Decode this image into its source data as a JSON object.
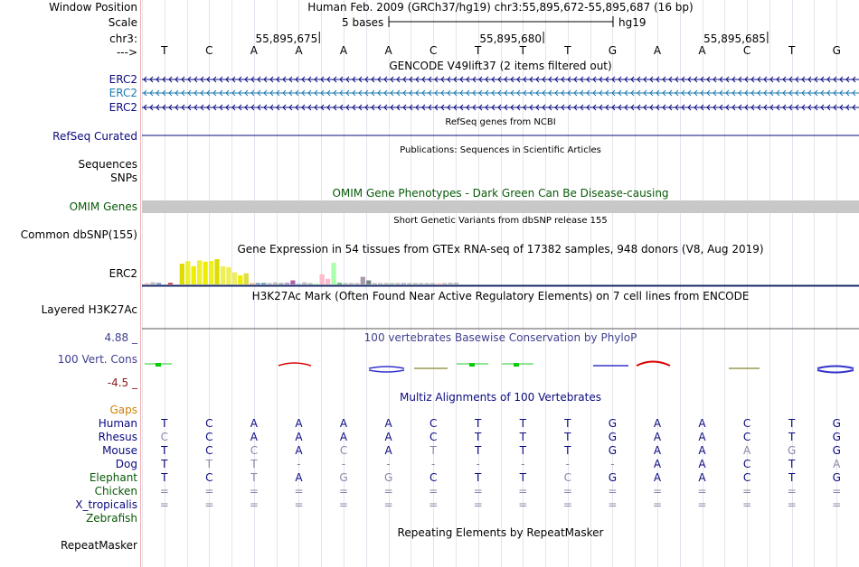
{
  "header": {
    "window_position_label": "Window Position",
    "window_position_value": "Human Feb. 2009 (GRCh37/hg19)   chr3:55,895,672-55,895,687 (16 bp)",
    "scale_label": "Scale",
    "scale_text": "5 bases",
    "scale_db": "hg19",
    "chr_label": "chr3:",
    "ticks": [
      {
        "text": "55,895,675",
        "pos": 4
      },
      {
        "text": "55,895,680",
        "pos": 9
      },
      {
        "text": "55,895,685",
        "pos": 14
      }
    ],
    "arrow_label": "--->",
    "bases": [
      "T",
      "C",
      "A",
      "A",
      "A",
      "A",
      "C",
      "T",
      "T",
      "T",
      "G",
      "A",
      "A",
      "C",
      "T",
      "G"
    ]
  },
  "tracks": {
    "gencode": {
      "title": "GENCODE V49lift37 (2 items filtered out)",
      "items": [
        {
          "label": "ERC2",
          "color": "#0a0a80"
        },
        {
          "label": "ERC2",
          "color": "#1b7ab0"
        },
        {
          "label": "ERC2",
          "color": "#0a0a80"
        }
      ]
    },
    "refseq": {
      "title": "RefSeq genes from NCBI",
      "label": "RefSeq Curated",
      "color": "#0a0a80"
    },
    "publications": {
      "title": "Publications: Sequences in Scientific Articles",
      "labels": [
        "Sequences",
        "SNPs"
      ]
    },
    "omim": {
      "title": "OMIM Gene Phenotypes - Dark Green Can Be Disease-causing",
      "label": "OMIM Genes",
      "color": "#075a07"
    },
    "dbsnp": {
      "title": "Short Genetic Variants from dbSNP release 155",
      "label": "Common dbSNP(155)"
    },
    "gtex": {
      "title": "Gene Expression in 54 tissues from GTEx RNA-seq of 17382 samples, 948 donors (V8, Aug 2019)",
      "label": "ERC2",
      "levels": [
        0.05,
        0.08,
        0.04,
        0,
        0.06,
        0,
        0.82,
        0.92,
        0.72,
        0.95,
        0.9,
        0.93,
        1.0,
        0.72,
        0.68,
        0.48,
        0.36,
        0.44,
        0.06,
        0.05,
        0.06,
        0.04,
        0.08,
        0.05,
        0.07,
        0.16,
        0.04,
        0.08,
        0.04,
        0.05,
        0.4,
        0.22,
        0.85,
        0.06,
        0.04,
        0.05,
        0.03,
        0.3,
        0.16,
        0.04,
        0.05,
        0.04,
        0.05,
        0.03,
        0.04,
        0.05,
        0.03,
        0.04,
        0.05,
        0.03,
        0.04,
        0.05,
        0.06,
        0.07
      ],
      "colors": [
        "#fbb",
        "#bbb",
        "#68b",
        "#eee",
        "#c33",
        "#ccc",
        "#dd0",
        "#ee3",
        "#ee0",
        "#ee3",
        "#ee0",
        "#ee2",
        "#dd0",
        "#ee5",
        "#ee5",
        "#ee6",
        "#ee0",
        "#dd4",
        "#fb8",
        "#69b",
        "#69b",
        "#bbb",
        "#bbb",
        "#9a9",
        "#b9d",
        "#a6a",
        "#bdf",
        "#bbb",
        "#bbb",
        "#bfb",
        "#fbc",
        "#fbc",
        "#afa",
        "#4b4",
        "#bbb",
        "#bbb",
        "#bbb",
        "#a9a",
        "#788",
        "#bbb",
        "#bbb",
        "#bbb",
        "#aca",
        "#bbb",
        "#aac",
        "#bbb",
        "#bbb",
        "#bbb",
        "#bbb",
        "#bbb",
        "#fcb",
        "#bbb",
        "#bbb",
        "#bbb"
      ]
    },
    "h3k27ac": {
      "title": "H3K27Ac Mark (Often Found Near Active Regulatory Elements) on 7 cell lines from ENCODE",
      "label": "Layered H3K27Ac"
    },
    "phylop": {
      "title": "100 vertebrates Basewise Conservation by PhyloP",
      "label": "100 Vert. Cons",
      "max_label": "4.88 _",
      "min_label": "-4.5 _",
      "color": "#404090"
    },
    "multiz": {
      "title": "Multiz Alignments of 100 Vertebrates",
      "gaps_label": "Gaps",
      "gaps_color": "#d08000",
      "species": [
        {
          "label": "Human",
          "bases": [
            "T",
            "C",
            "A",
            "A",
            "A",
            "A",
            "C",
            "T",
            "T",
            "T",
            "G",
            "A",
            "A",
            "C",
            "T",
            "G"
          ]
        },
        {
          "label": "Rhesus",
          "bases": [
            "C",
            "C",
            "A",
            "A",
            "A",
            "A",
            "C",
            "T",
            "T",
            "T",
            "G",
            "A",
            "A",
            "C",
            "T",
            "G"
          ]
        },
        {
          "label": "Mouse",
          "bases": [
            "T",
            "C",
            "C",
            "A",
            "C",
            "A",
            "T",
            "T",
            "T",
            "T",
            "G",
            "A",
            "A",
            "A",
            "G",
            "G"
          ]
        },
        {
          "label": "Dog",
          "bases": [
            "T",
            "T",
            "T",
            "-",
            "-",
            "-",
            "-",
            "-",
            "-",
            "-",
            "-",
            "A",
            "A",
            "C",
            "T",
            "A"
          ]
        },
        {
          "label": "Elephant",
          "bases": [
            "T",
            "C",
            "T",
            "A",
            "G",
            "G",
            "C",
            "T",
            "T",
            "C",
            "G",
            "A",
            "A",
            "C",
            "T",
            "G"
          ]
        },
        {
          "label": "Chicken",
          "bases": [
            "=",
            "=",
            "=",
            "=",
            "=",
            "=",
            "=",
            "=",
            "=",
            "=",
            "=",
            "=",
            "=",
            "=",
            "=",
            "="
          ]
        },
        {
          "label": "X_tropicalis",
          "bases": [
            "=",
            "=",
            "=",
            "=",
            "=",
            "=",
            "=",
            "=",
            "=",
            "=",
            "=",
            "=",
            "=",
            "=",
            "=",
            "="
          ]
        },
        {
          "label": "Zebrafish",
          "bases": [
            "",
            "",
            "",
            "",
            "",
            "",
            "",
            "",
            "",
            "",
            "",
            "",
            "",
            "",
            "",
            ""
          ]
        }
      ]
    },
    "repeatmasker": {
      "title": "Repeating Elements by RepeatMasker",
      "label": "RepeatMasker"
    }
  }
}
